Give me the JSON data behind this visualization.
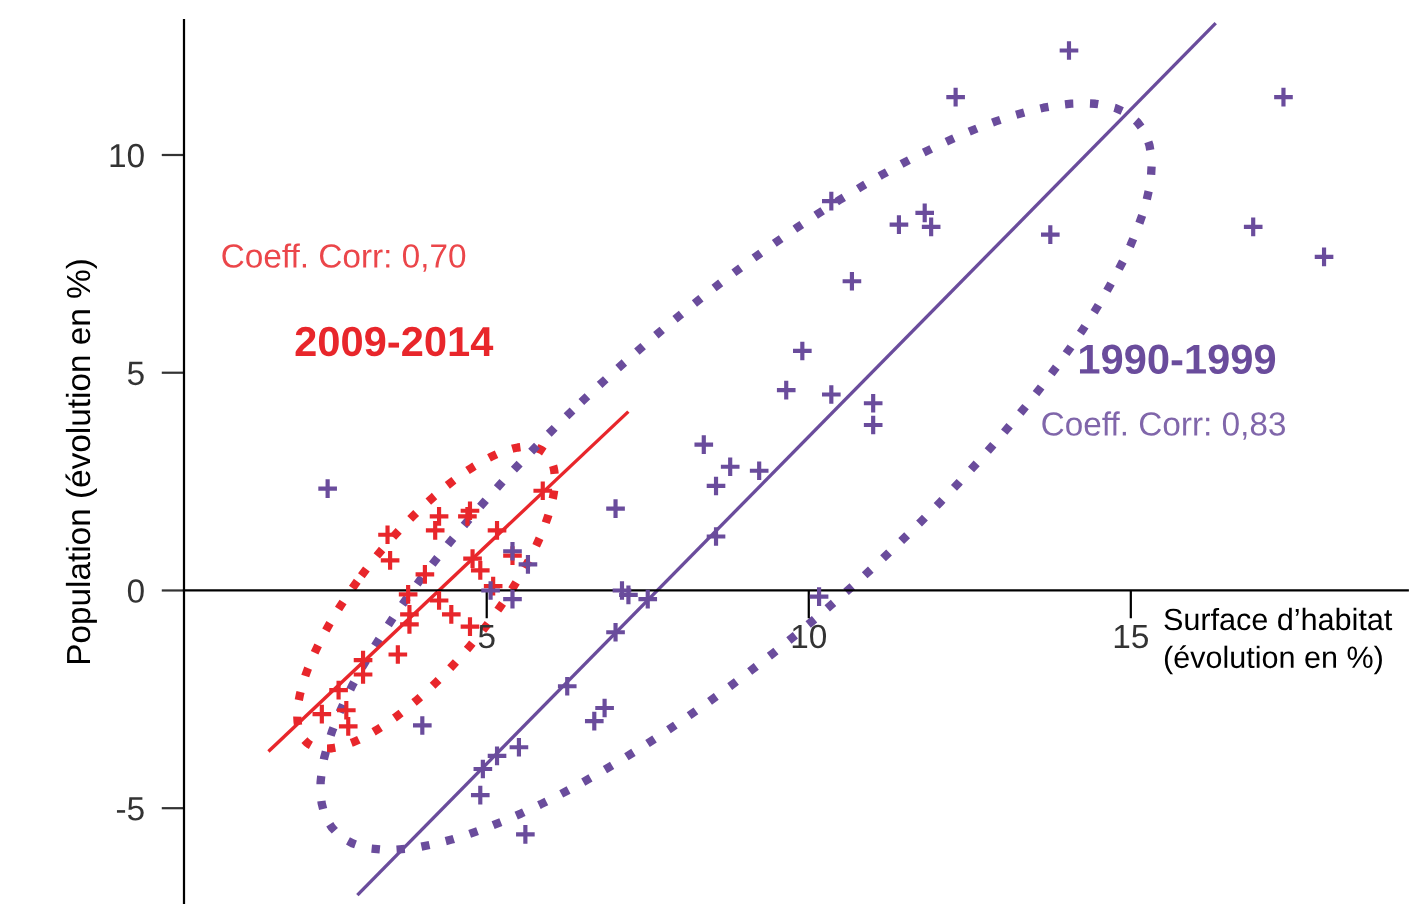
{
  "chart_data": {
    "type": "scatter",
    "xlabel": "Surface d’habitat\n(évolution en %)",
    "ylabel": "Population (évolution en %)",
    "xlim": [
      0.3,
      19.3
    ],
    "ylim": [
      -7.2,
      13.1
    ],
    "xticks": [
      5,
      10,
      15
    ],
    "yticks": [
      -5,
      0,
      5,
      10
    ],
    "grid": false,
    "legend": false,
    "marker": "cross",
    "annotations": [
      "Coeff. Corr: 0,70",
      "Coeff. Corr: 0,83"
    ],
    "series": [
      {
        "name": "2009-2014",
        "color": "#e8262b",
        "x": [
          4.74,
          4.7,
          4.26,
          4.2,
          3.46,
          3.5,
          5.16,
          4.78,
          4.9,
          4.04,
          3.78,
          4.26,
          3.8,
          3.8,
          4.45,
          4.74,
          3.62,
          3.08,
          3.08,
          2.7,
          2.44,
          2.82,
          2.85,
          5.87,
          5.1,
          5.4
        ],
        "values": [
          1.83,
          1.7,
          1.7,
          1.38,
          1.28,
          0.69,
          1.38,
          0.73,
          0.46,
          0.37,
          -0.09,
          -0.23,
          -0.55,
          -0.78,
          -0.55,
          -0.83,
          -1.47,
          -1.6,
          -1.93,
          -2.29,
          -2.84,
          -2.75,
          -3.12,
          2.29,
          0.1,
          0.8
        ]
      },
      {
        "name": "1990-1999",
        "color": "#6a4c9c",
        "x": [
          2.53,
          7.0,
          7.1,
          7.2,
          7.5,
          7.0,
          6.25,
          6.67,
          6.83,
          5.5,
          5.16,
          4.94,
          4.0,
          4.9,
          5.6,
          8.37,
          8.78,
          8.56,
          9.23,
          8.56,
          9.65,
          10.35,
          11.0,
          11.0,
          9.9,
          10.67,
          10.35,
          11.4,
          11.8,
          11.9,
          12.28,
          14.04,
          13.75,
          17.37,
          16.9,
          18.0,
          10.16,
          5.06,
          5.4,
          5.4,
          5.64
        ],
        "values": [
          2.34,
          1.88,
          0.0,
          -0.1,
          -0.2,
          -0.96,
          -2.2,
          -3.0,
          -2.7,
          -3.6,
          -3.8,
          -4.1,
          -3.1,
          -4.7,
          -5.6,
          3.35,
          2.84,
          2.4,
          2.75,
          1.24,
          4.6,
          4.5,
          4.3,
          3.8,
          5.5,
          7.1,
          8.94,
          8.4,
          8.67,
          8.35,
          11.33,
          12.4,
          8.17,
          11.33,
          8.35,
          7.66,
          -0.14,
          0.0,
          -0.2,
          0.9,
          0.6
        ]
      },
      {
        "type": "line",
        "marker": "none",
        "color": "#e8262b",
        "x": [
          1.63,
          7.18
        ],
        "values": [
          -3.67,
          4.08
        ]
      },
      {
        "type": "line",
        "marker": "none",
        "color": "#6a4c9c",
        "x": [
          3.01,
          16.3
        ],
        "values": [
          -6.97,
          13.0
        ]
      }
    ]
  }
}
